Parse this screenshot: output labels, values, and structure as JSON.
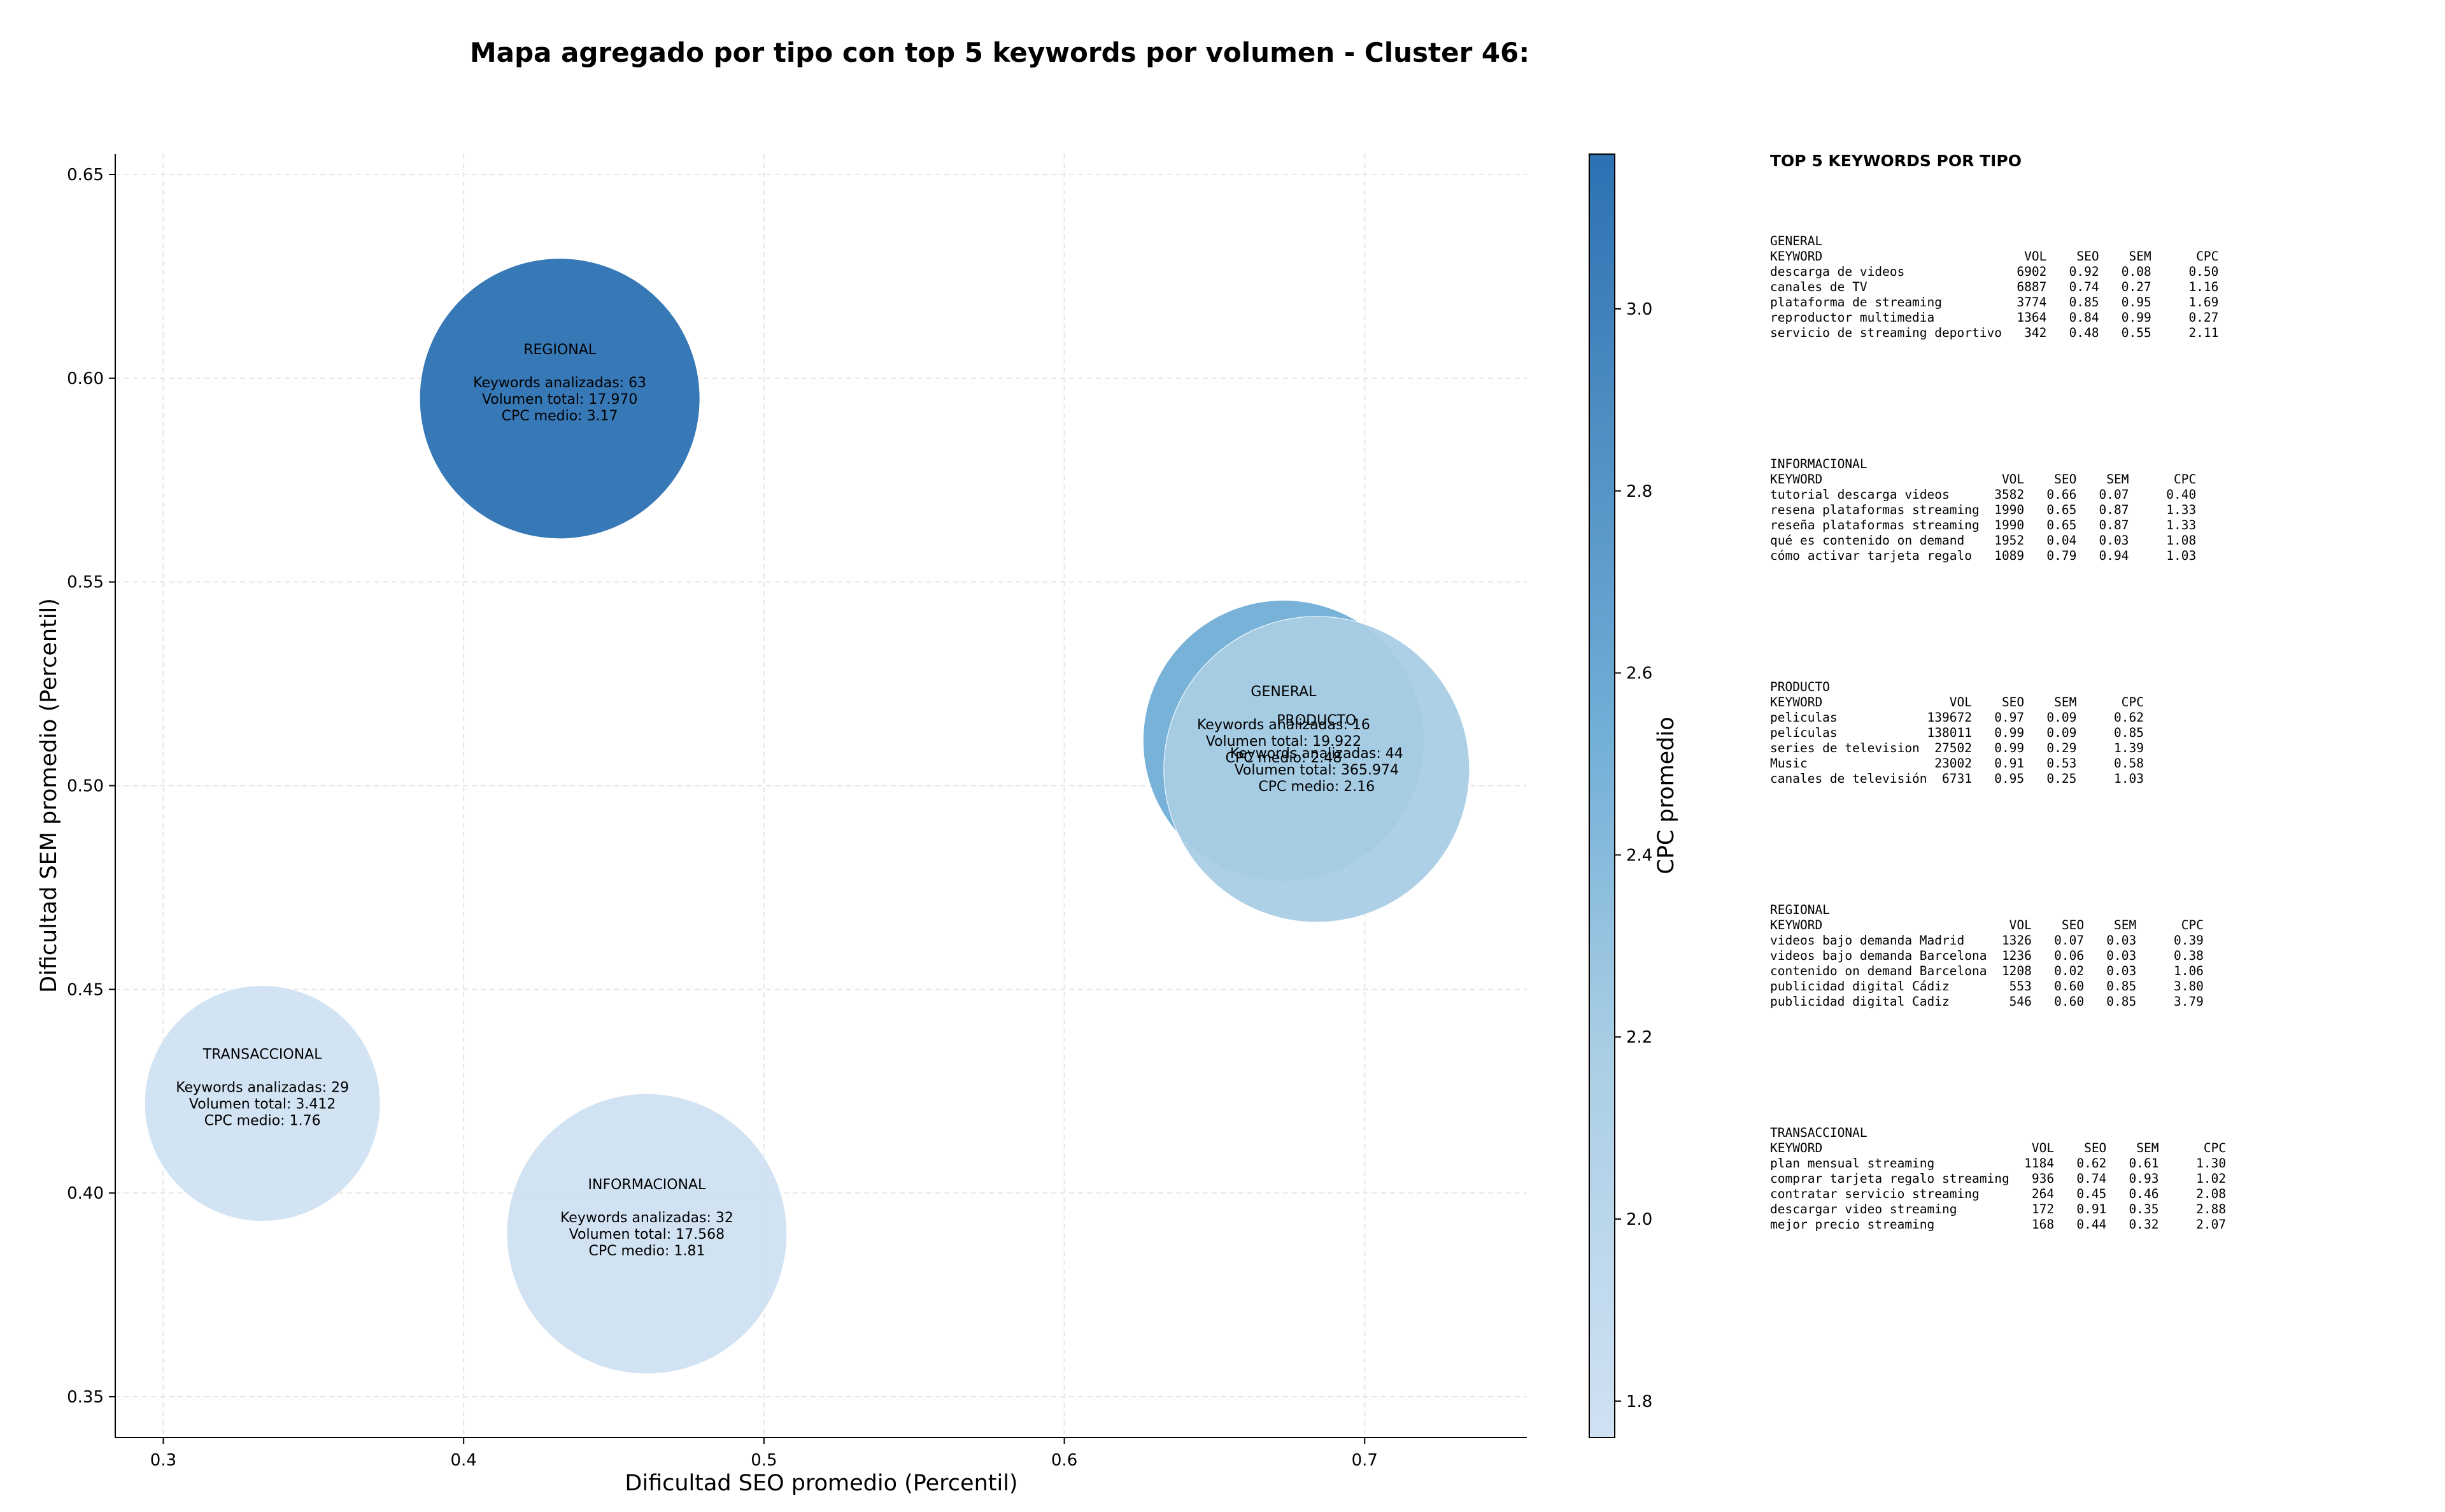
{
  "chart_data": {
    "type": "scatter",
    "title": "Mapa agregado por tipo con top 5 keywords por volumen - Cluster 46:",
    "xlabel": "Dificultad SEO promedio (Percentil)",
    "ylabel": "Dificultad SEM promedio (Percentil)",
    "xlim": [
      0.284,
      0.754
    ],
    "ylim": [
      0.34,
      0.655
    ],
    "xticks": [
      0.3,
      0.4,
      0.5,
      0.6,
      0.7
    ],
    "xtick_labels": [
      "0.3",
      "0.4",
      "0.5",
      "0.6",
      "0.7"
    ],
    "yticks": [
      0.35,
      0.4,
      0.45,
      0.5,
      0.55,
      0.6,
      0.65
    ],
    "ytick_labels": [
      "0.35",
      "0.40",
      "0.45",
      "0.50",
      "0.55",
      "0.60",
      "0.65"
    ],
    "grid": true,
    "colorbar": {
      "label": "CPC promedio",
      "range": [
        1.76,
        3.17
      ],
      "ticks": [
        1.8,
        2.0,
        2.2,
        2.4,
        2.6,
        2.8,
        3.0
      ],
      "tick_labels": [
        "1.8",
        "2.0",
        "2.2",
        "2.4",
        "2.6",
        "2.8",
        "3.0"
      ],
      "colormap": "Blues",
      "color_low": "#d0e1f2",
      "color_high": "#2c71b2"
    },
    "bubbles": [
      {
        "name": "REGIONAL",
        "x": 0.432,
        "y": 0.595,
        "count": 63,
        "volume": 17970,
        "cpc": 3.17,
        "label_lines": [
          "REGIONAL",
          "",
          "Keywords analizadas: 63",
          "Volumen total: 17.970",
          "CPC medio: 3.17"
        ],
        "color": "#2c71b2"
      },
      {
        "name": "GENERAL",
        "x": 0.673,
        "y": 0.511,
        "count": 16,
        "volume": 19922,
        "cpc": 2.48,
        "label_lines": [
          "GENERAL",
          "",
          "Keywords analizadas: 16",
          "Volumen total: 19.922",
          "CPC medio: 2.48"
        ],
        "color": "#72aed6"
      },
      {
        "name": "PRODUCTO",
        "x": 0.684,
        "y": 0.504,
        "count": 44,
        "volume": 365974,
        "cpc": 2.16,
        "label_lines": [
          "PRODUCTO",
          "",
          "Keywords analizadas: 44",
          "Volumen total: 365.974",
          "CPC medio: 2.16"
        ],
        "color": "#a9cee5"
      },
      {
        "name": "TRANSACCIONAL",
        "x": 0.333,
        "y": 0.422,
        "count": 29,
        "volume": 3412,
        "cpc": 1.76,
        "label_lines": [
          "TRANSACCIONAL",
          "",
          "Keywords analizadas: 29",
          "Volumen total: 3.412",
          "CPC medio: 1.76"
        ],
        "color": "#d0e1f2"
      },
      {
        "name": "INFORMACIONAL",
        "x": 0.461,
        "y": 0.39,
        "count": 32,
        "volume": 17568,
        "cpc": 1.81,
        "label_lines": [
          "INFORMACIONAL",
          "",
          "Keywords analizadas: 32",
          "Volumen total: 17.568",
          "CPC medio: 1.81"
        ],
        "color": "#cfe0f1"
      }
    ]
  },
  "side_panel": {
    "title": "TOP 5 KEYWORDS POR TIPO",
    "blocks": [
      {
        "text": "GENERAL\nKEYWORD                           VOL    SEO    SEM      CPC\ndescarga de videos               6902   0.92   0.08     0.50\ncanales de TV                    6887   0.74   0.27     1.16\nplataforma de streaming          3774   0.85   0.95     1.69\nreproductor multimedia           1364   0.84   0.99     0.27\nservicio de streaming deportivo   342   0.48   0.55     2.11"
      },
      {
        "text": "INFORMACIONAL\nKEYWORD                        VOL    SEO    SEM      CPC\ntutorial descarga videos      3582   0.66   0.07     0.40\nresena plataformas streaming  1990   0.65   0.87     1.33\nreseña plataformas streaming  1990   0.65   0.87     1.33\nqué es contenido on demand    1952   0.04   0.03     1.08\ncómo activar tarjeta regalo   1089   0.79   0.94     1.03"
      },
      {
        "text": "PRODUCTO\nKEYWORD                 VOL    SEO    SEM      CPC\npeliculas            139672   0.97   0.09     0.62\npelículas            138011   0.99   0.09     0.85\nseries de television  27502   0.99   0.29     1.39\nMusic                 23002   0.91   0.53     0.58\ncanales de televisión  6731   0.95   0.25     1.03"
      },
      {
        "text": "REGIONAL\nKEYWORD                         VOL    SEO    SEM      CPC\nvideos bajo demanda Madrid     1326   0.07   0.03     0.39\nvideos bajo demanda Barcelona  1236   0.06   0.03     0.38\ncontenido on demand Barcelona  1208   0.02   0.03     1.06\npublicidad digital Cádiz        553   0.60   0.85     3.80\npublicidad digital Cadiz        546   0.60   0.85     3.79"
      },
      {
        "text": "TRANSACCIONAL\nKEYWORD                            VOL    SEO    SEM      CPC\nplan mensual streaming            1184   0.62   0.61     1.30\ncomprar tarjeta regalo streaming   936   0.74   0.93     1.02\ncontratar servicio streaming       264   0.45   0.46     2.08\ndescargar video streaming          172   0.91   0.35     2.88\nmejor precio streaming             168   0.44   0.32     2.07"
      }
    ]
  }
}
